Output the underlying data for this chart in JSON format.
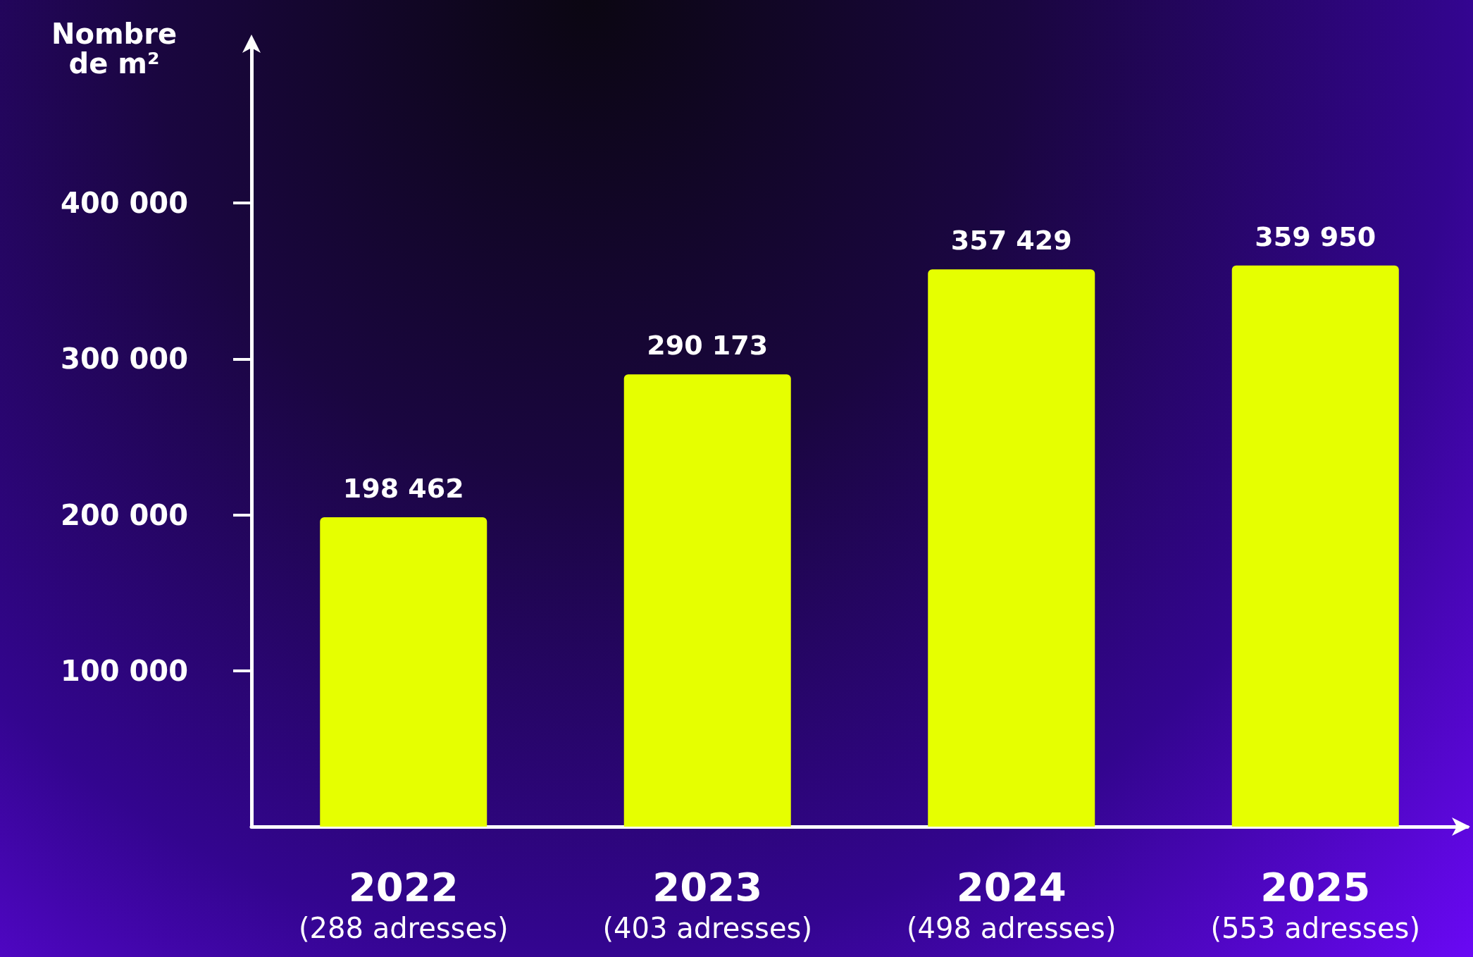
{
  "chart_data": {
    "type": "bar",
    "ylabel": "Nombre de m²",
    "categories": [
      "2022 (288 adresses)",
      "2023 (403 adresses)",
      "2024 (498 adresses)",
      "2025 (553 adresses)"
    ],
    "values": [
      198462,
      290173,
      357429,
      359950
    ],
    "value_labels": [
      "198 462",
      "290 173",
      "357 429",
      "359 950"
    ],
    "color": "#e6ff00",
    "ylim": [
      0,
      500000
    ],
    "yticks": [
      {
        "value": 100000,
        "label": "100 000"
      },
      {
        "value": 200000,
        "label": "200 000"
      },
      {
        "value": 300000,
        "label": "300 000"
      },
      {
        "value": 400000,
        "label": "400 000"
      }
    ],
    "grid": false
  }
}
